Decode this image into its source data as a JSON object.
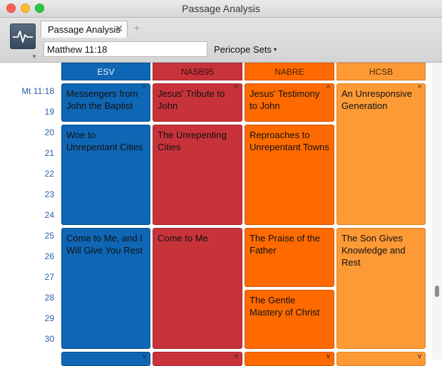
{
  "window": {
    "title": "Passage Analysis"
  },
  "tabs": [
    {
      "label": "Passage Analysis",
      "close": "✕"
    }
  ],
  "tab_add": "+",
  "reference": {
    "value": "Matthew 11:18"
  },
  "pericope_menu": {
    "label": "Pericope Sets",
    "caret": "▾"
  },
  "verses": [
    "Mt 11:18",
    "19",
    "20",
    "21",
    "22",
    "23",
    "24",
    "25",
    "26",
    "27",
    "28",
    "29",
    "30"
  ],
  "colors": {
    "ESV": "#0f66b4",
    "NASB95": "#c8333b",
    "NABRE": "#fe6a00",
    "HCSB": "#fe9a36",
    "verse_label": "#2a5fa8"
  },
  "columns": [
    {
      "name": "ESV",
      "blocks": [
        {
          "title": "Messengers from John the Baptist",
          "chev": "^"
        },
        {
          "title": "Woe to Unrepentant Cities",
          "chev": ""
        },
        {
          "title": "Come to Me, and I Will Give You Rest",
          "chev": ""
        },
        {
          "title": "",
          "chev": "v"
        }
      ]
    },
    {
      "name": "NASB95",
      "blocks": [
        {
          "title": "Jesus' Tribute to John",
          "chev": "^"
        },
        {
          "title": "The Unrepenting Cities",
          "chev": ""
        },
        {
          "title": "Come to Me",
          "chev": ""
        },
        {
          "title": "",
          "chev": "v"
        }
      ]
    },
    {
      "name": "NABRE",
      "blocks": [
        {
          "title": "Jesus' Testimony to John",
          "chev": "^"
        },
        {
          "title": "Reproaches to Unrepentant Towns",
          "chev": ""
        },
        {
          "title": "The Praise of the Father",
          "chev": ""
        },
        {
          "title": "The Gentle Mastery of Christ",
          "chev": ""
        },
        {
          "title": "",
          "chev": "v"
        }
      ]
    },
    {
      "name": "HCSB",
      "blocks": [
        {
          "title": "An Unresponsive Generation",
          "chev": "^"
        },
        {
          "title": "The Son Gives Knowledge and Rest",
          "chev": ""
        },
        {
          "title": "",
          "chev": "v"
        }
      ]
    }
  ]
}
